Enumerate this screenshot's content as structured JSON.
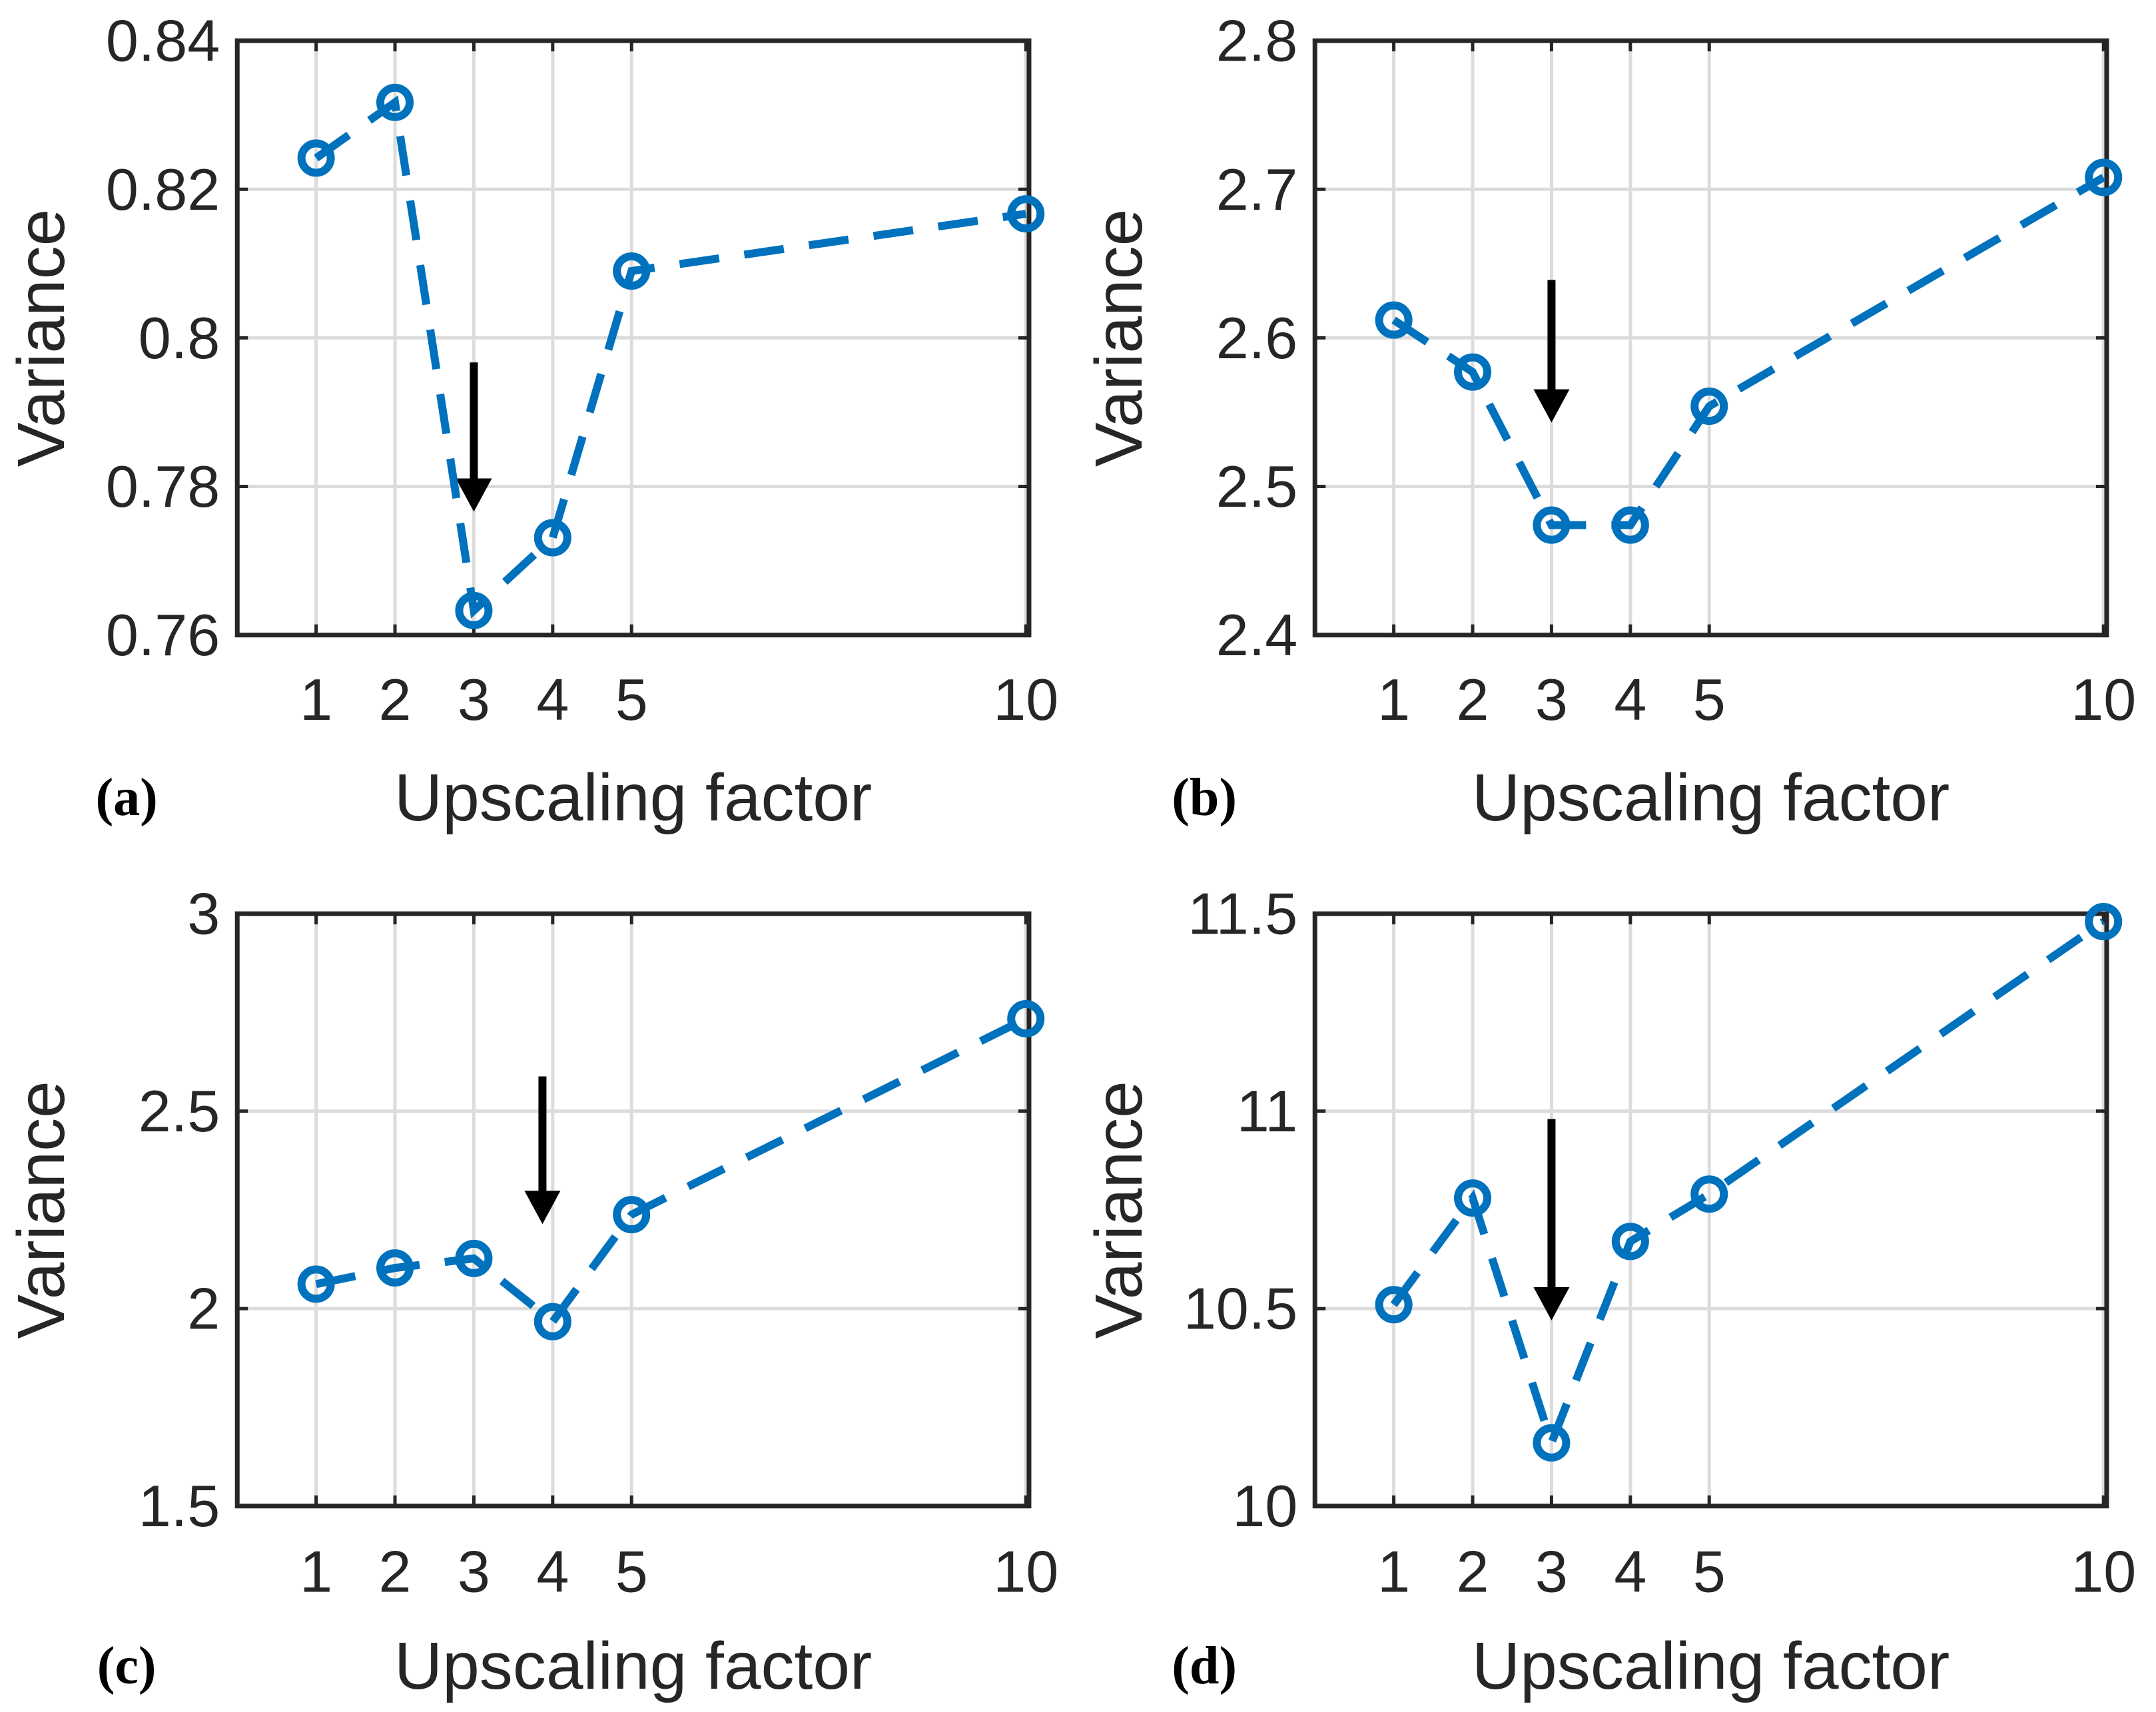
{
  "figure": {
    "background": "#ffffff",
    "accent_blue": "#0072BD",
    "grid_color": "#dcdcdc",
    "axis_color": "#262626",
    "text_color": "#262626",
    "arrow_color": "#000000"
  },
  "chart_data": [
    {
      "type": "line",
      "panel": "(a)",
      "xlabel": "Upscaling factor",
      "ylabel": "Variance",
      "line_style": "dashed",
      "marker": "open-circle",
      "grid": true,
      "legend": "none",
      "x": [
        1,
        2,
        3,
        4,
        5,
        10
      ],
      "y": [
        0.8242,
        0.8317,
        0.7633,
        0.7731,
        0.809,
        0.8167
      ],
      "xlim": [
        0,
        10.04
      ],
      "ylim": [
        0.76,
        0.84
      ],
      "xticks": [
        1,
        2,
        3,
        4,
        5,
        10
      ],
      "xtick_labels": [
        "1",
        "2",
        "3",
        "4",
        "5",
        "10"
      ],
      "yticks": [
        0.76,
        0.78,
        0.8,
        0.82,
        0.84
      ],
      "ytick_labels": [
        "0.76",
        "0.78",
        "0.8",
        "0.82",
        "0.84"
      ],
      "arrow": {
        "x": 3,
        "y_from": 0.7967,
        "y_to": 0.7766
      }
    },
    {
      "type": "line",
      "panel": "(b)",
      "xlabel": "Upscaling factor",
      "ylabel": "Variance",
      "line_style": "dashed",
      "marker": "open-circle",
      "grid": true,
      "legend": "none",
      "x": [
        1,
        2,
        3,
        4,
        5,
        10
      ],
      "y": [
        2.612,
        2.577,
        2.474,
        2.474,
        2.554,
        2.708
      ],
      "xlim": [
        0,
        10.04
      ],
      "ylim": [
        2.4,
        2.8
      ],
      "xticks": [
        1,
        2,
        3,
        4,
        5,
        10
      ],
      "xtick_labels": [
        "1",
        "2",
        "3",
        "4",
        "5",
        "10"
      ],
      "yticks": [
        2.4,
        2.5,
        2.6,
        2.7,
        2.8
      ],
      "ytick_labels": [
        "2.4",
        "2.5",
        "2.6",
        "2.7",
        "2.8"
      ],
      "arrow": {
        "x": 3,
        "y_from": 2.639,
        "y_to": 2.543
      }
    },
    {
      "type": "line",
      "panel": "(c)",
      "xlabel": "Upscaling factor",
      "ylabel": "Variance",
      "line_style": "dashed",
      "marker": "open-circle",
      "grid": true,
      "legend": "none",
      "x": [
        1,
        2,
        3,
        4,
        5,
        10
      ],
      "y": [
        2.062,
        2.103,
        2.127,
        1.967,
        2.238,
        2.734
      ],
      "xlim": [
        0,
        10.04
      ],
      "ylim": [
        1.5,
        3
      ],
      "xticks": [
        1,
        2,
        3,
        4,
        5,
        10
      ],
      "xtick_labels": [
        "1",
        "2",
        "3",
        "4",
        "5",
        "10"
      ],
      "yticks": [
        1.5,
        2,
        2.5,
        3
      ],
      "ytick_labels": [
        "1.5",
        "2",
        "2.5",
        "3"
      ],
      "arrow": {
        "x": 3.87,
        "y_from": 2.588,
        "y_to": 2.214
      }
    },
    {
      "type": "line",
      "panel": "(d)",
      "xlabel": "Upscaling factor",
      "ylabel": "Variance",
      "line_style": "dashed",
      "marker": "open-circle",
      "grid": true,
      "legend": "none",
      "x": [
        1,
        2,
        3,
        4,
        5,
        10
      ],
      "y": [
        10.51,
        10.78,
        10.16,
        10.67,
        10.79,
        11.48
      ],
      "xlim": [
        0,
        10.04
      ],
      "ylim": [
        10,
        11.5
      ],
      "xticks": [
        1,
        2,
        3,
        4,
        5,
        10
      ],
      "xtick_labels": [
        "1",
        "2",
        "3",
        "4",
        "5",
        "10"
      ],
      "yticks": [
        10,
        10.5,
        11,
        11.5
      ],
      "ytick_labels": [
        "10",
        "10.5",
        "11",
        "11.5"
      ],
      "arrow": {
        "x": 3,
        "y_from": 10.98,
        "y_to": 10.47
      }
    }
  ]
}
